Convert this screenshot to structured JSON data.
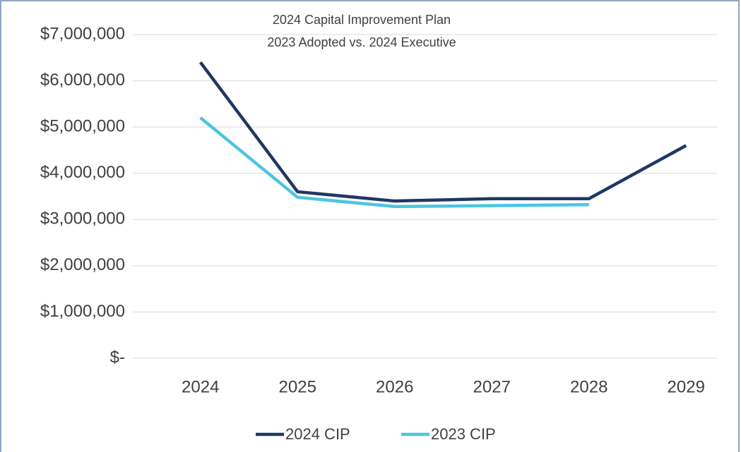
{
  "chart_data": {
    "type": "line",
    "title": "2024 Capital Improvement Plan",
    "subtitle": "2023 Adopted vs. 2024 Executive",
    "categories": [
      "2024",
      "2025",
      "2026",
      "2027",
      "2028",
      "2029"
    ],
    "series": [
      {
        "name": "2024 CIP",
        "color": "#1f3864",
        "values": [
          6400000,
          3600000,
          3400000,
          3450000,
          3450000,
          4600000
        ]
      },
      {
        "name": "2023 CIP",
        "color": "#4cc5e0",
        "values": [
          5200000,
          3480000,
          3280000,
          3300000,
          3320000,
          null
        ]
      }
    ],
    "ylim": [
      0,
      7000000
    ],
    "yticks": [
      {
        "value": 0,
        "label": "$-"
      },
      {
        "value": 1000000,
        "label": "$1,000,000"
      },
      {
        "value": 2000000,
        "label": "$2,000,000"
      },
      {
        "value": 3000000,
        "label": "$3,000,000"
      },
      {
        "value": 4000000,
        "label": "$4,000,000"
      },
      {
        "value": 5000000,
        "label": "$5,000,000"
      },
      {
        "value": 6000000,
        "label": "$6,000,000"
      },
      {
        "value": 7000000,
        "label": "$7,000,000"
      }
    ],
    "grid": true,
    "legend": "bottom"
  }
}
